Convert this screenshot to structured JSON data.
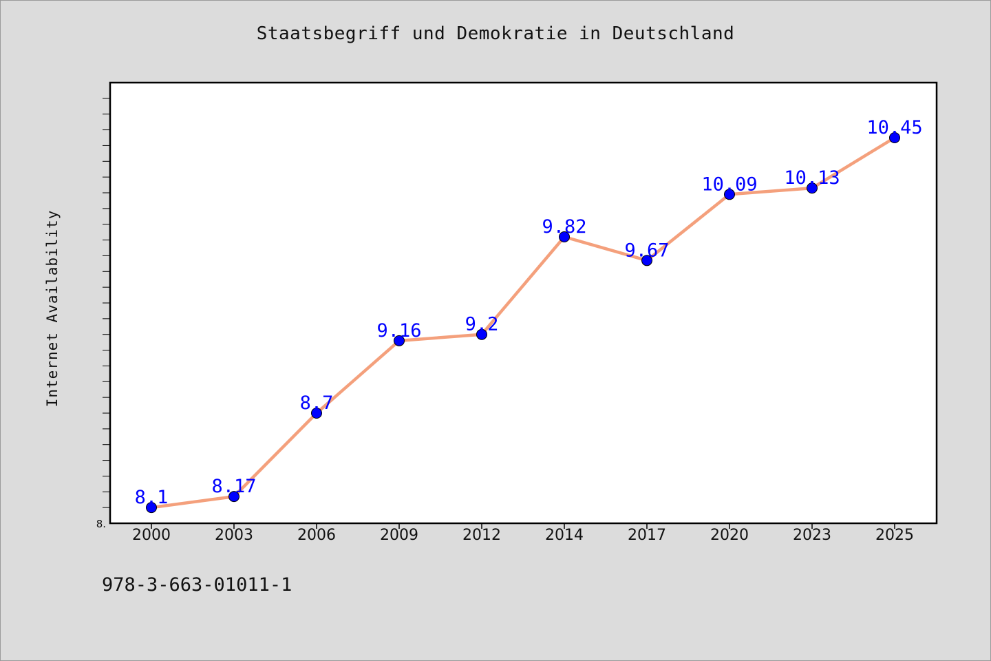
{
  "chart_data": {
    "type": "line",
    "title": "Staatsbegriff und Demokratie in Deutschland",
    "xlabel": "",
    "ylabel": "Internet Availability",
    "categories": [
      "2000",
      "2003",
      "2006",
      "2009",
      "2012",
      "2014",
      "2017",
      "2020",
      "2023",
      "2025"
    ],
    "series": [
      {
        "values": [
          8.1,
          8.17,
          8.7,
          9.16,
          9.2,
          9.82,
          9.67,
          10.09,
          10.13,
          10.45
        ],
        "data_labels": [
          "8.1",
          "8.17",
          "8.7",
          "9.16",
          "9.2",
          "9.82",
          "9.67",
          "10.09",
          "10.13",
          "10.45"
        ],
        "line_color": "#f4a07c",
        "marker_color": "#0000ff",
        "label_color": "#0000ff"
      }
    ],
    "ylim": [
      8.0,
      10.8
    ],
    "y_min_label": "8.",
    "grid": false,
    "legend": "none"
  },
  "footer": {
    "isbn": "978-3-663-01011-1"
  },
  "colors": {
    "background": "#dcdcdc",
    "plot_background": "#ffffff",
    "axis": "#000000"
  }
}
